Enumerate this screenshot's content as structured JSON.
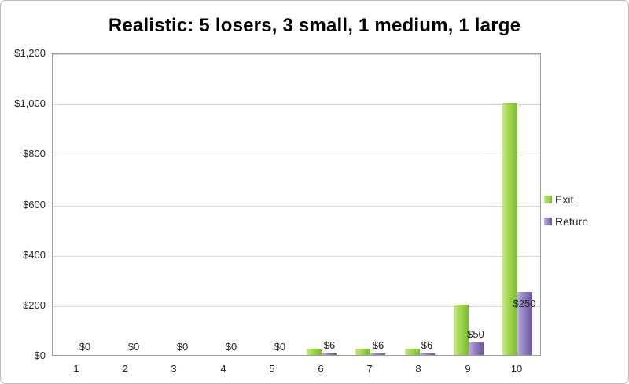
{
  "chart_data": {
    "type": "bar",
    "title": "Realistic: 5 losers, 3 small, 1 medium, 1 large",
    "categories": [
      "1",
      "2",
      "3",
      "4",
      "5",
      "6",
      "7",
      "8",
      "9",
      "10"
    ],
    "series": [
      {
        "name": "Exit",
        "values": [
          0,
          0,
          0,
          0,
          0,
          25,
          25,
          25,
          200,
          1000
        ],
        "color": "#9bd14a",
        "gradient": [
          "#c8ea85",
          "#a3d851",
          "#7abc2e"
        ]
      },
      {
        "name": "Return",
        "values": [
          0,
          0,
          0,
          0,
          0,
          6,
          6,
          6,
          50,
          250
        ],
        "color": "#8571b5",
        "gradient": [
          "#bfb1de",
          "#9583c4",
          "#6c569d"
        ]
      }
    ],
    "data_labels": {
      "series": "Return",
      "values": [
        "$0",
        "$0",
        "$0",
        "$0",
        "$0",
        "$6",
        "$6",
        "$6",
        "$50",
        "$250"
      ],
      "placement": [
        "out",
        "out",
        "out",
        "out",
        "out",
        "out",
        "out",
        "out",
        "out",
        "in"
      ]
    },
    "y_ticks": [
      "$0",
      "$200",
      "$400",
      "$600",
      "$800",
      "$1,000",
      "$1,200"
    ],
    "ylim": [
      0,
      1200
    ],
    "y_step": 200,
    "grid": true,
    "legend_position": "right"
  }
}
